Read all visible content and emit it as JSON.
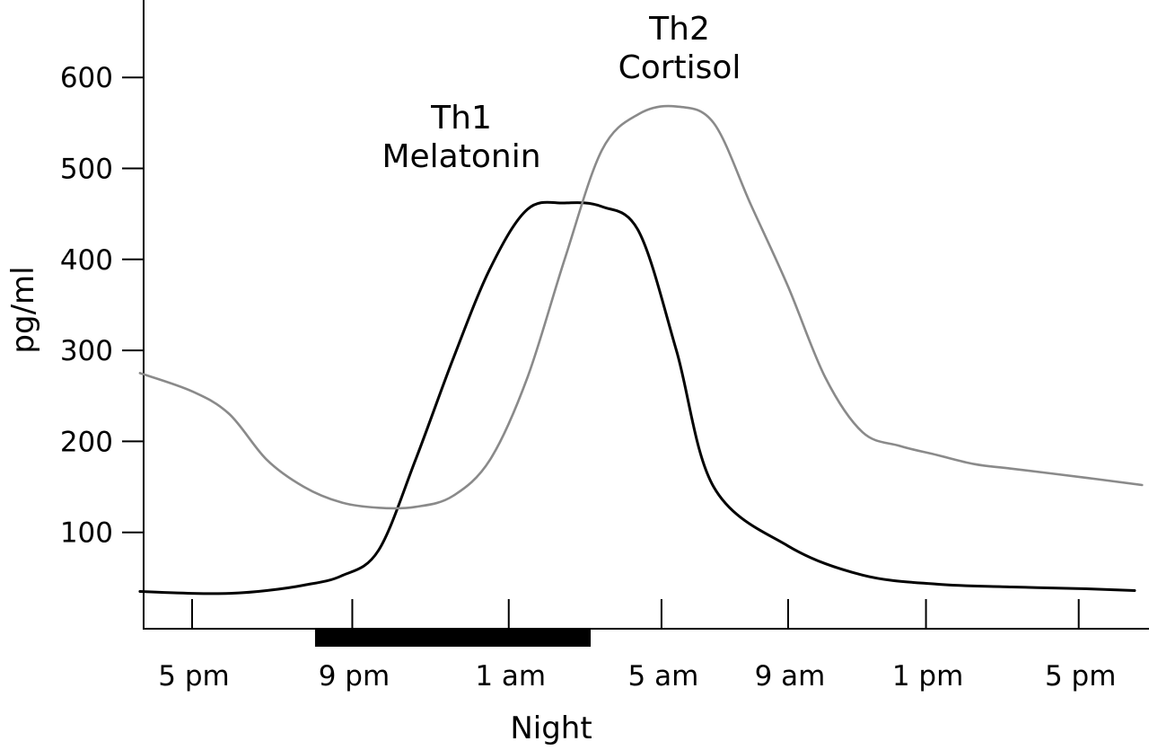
{
  "chart_data": {
    "type": "line",
    "title": "",
    "xlabel": "Night",
    "ylabel": "pg/ml",
    "ylim": [
      0,
      690
    ],
    "x_ticks": [
      "5 pm",
      "9 pm",
      "1 am",
      "5 am",
      "9 am",
      "1 pm",
      "5 pm"
    ],
    "y_ticks": [
      100,
      200,
      300,
      400,
      500,
      600
    ],
    "x_unit": "hours after 5 pm",
    "night_band": {
      "start_hour": 3.3,
      "end_hour": 10.7
    },
    "grid": false,
    "series": [
      {
        "name_lines": [
          "Th1",
          "Melatonin"
        ],
        "color": "#000000",
        "x": [
          -1.4,
          0.0,
          1.0,
          2.0,
          3.0,
          4.0,
          5.0,
          6.0,
          7.0,
          8.0,
          9.0,
          10.0,
          11.0,
          12.0,
          13.0,
          14.0,
          16.0,
          18.0,
          20.0,
          22.0,
          24.0,
          25.3
        ],
        "y": [
          35,
          33,
          33,
          36,
          42,
          52,
          80,
          180,
          290,
          390,
          455,
          462,
          458,
          430,
          300,
          150,
          85,
          53,
          43,
          40,
          38,
          36
        ]
      },
      {
        "name_lines": [
          "Th2",
          "Cortisol"
        ],
        "color": "#8a8a8a",
        "x": [
          -1.4,
          0.0,
          1.0,
          2.0,
          3.0,
          4.0,
          5.0,
          6.0,
          7.0,
          8.0,
          9.0,
          10.0,
          11.0,
          12.0,
          13.0,
          14.0,
          15.0,
          16.0,
          17.0,
          18.0,
          19.0,
          20.0,
          21.0,
          22.0,
          24.0,
          25.5
        ],
        "y": [
          275,
          255,
          230,
          180,
          150,
          133,
          127,
          128,
          140,
          180,
          270,
          400,
          520,
          560,
          568,
          550,
          460,
          370,
          270,
          210,
          195,
          185,
          175,
          170,
          160,
          152
        ]
      }
    ]
  }
}
